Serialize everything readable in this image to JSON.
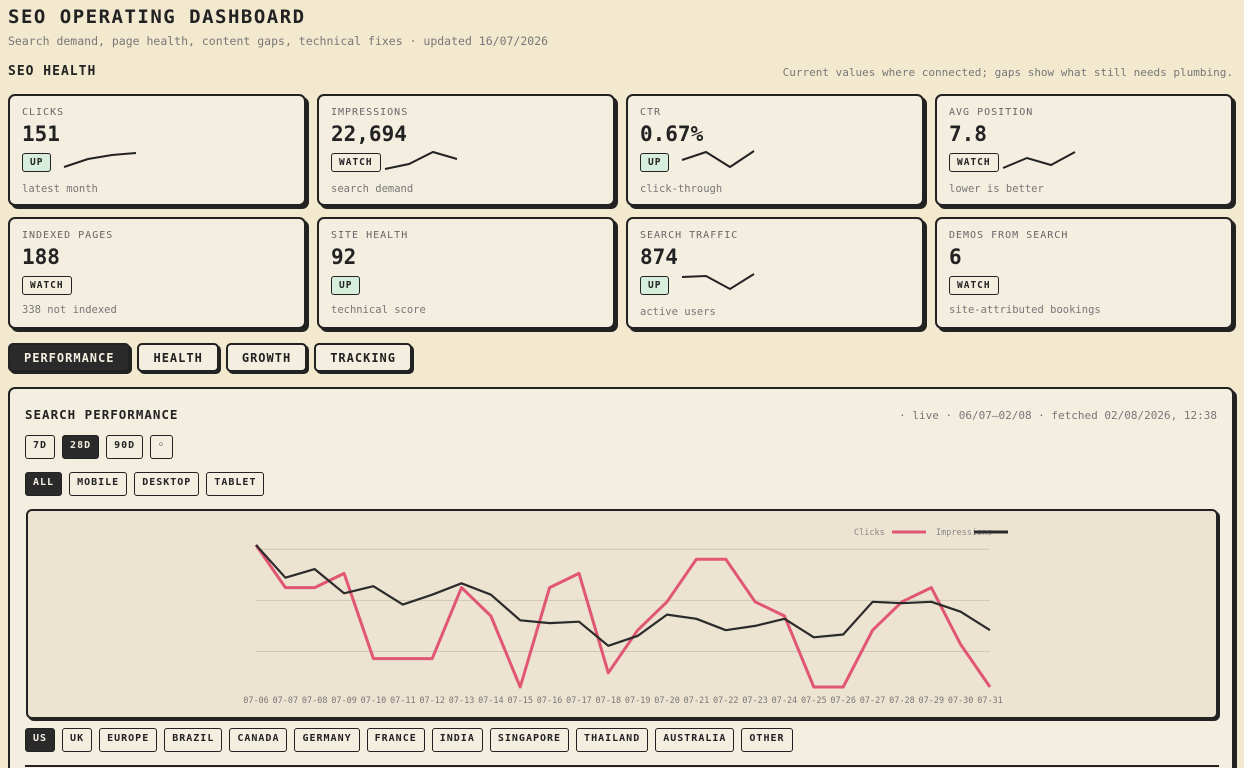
{
  "header": {
    "title": "SEO OPERATING DASHBOARD",
    "subtitle": "Search demand, page health, content gaps, technical fixes · updated 16/07/2026"
  },
  "health": {
    "title": "SEO HEALTH",
    "note": "Current values where connected; gaps show what still needs plumbing.",
    "cards": [
      {
        "label": "CLICKS",
        "value": "151",
        "badge": "UP",
        "badge_type": "up",
        "caption": "latest month",
        "trend": [
          0.15,
          0.55,
          0.75,
          0.85
        ]
      },
      {
        "label": "IMPRESSIONS",
        "value": "22,694",
        "badge": "WATCH",
        "badge_type": "watch",
        "caption": "search demand",
        "trend": [
          0.05,
          0.3,
          0.9,
          0.55
        ]
      },
      {
        "label": "CTR",
        "value": "0.67%",
        "badge": "UP",
        "badge_type": "up",
        "caption": "click-through",
        "trend": [
          0.5,
          0.9,
          0.15,
          0.95
        ]
      },
      {
        "label": "AVG POSITION",
        "value": "7.8",
        "badge": "WATCH",
        "badge_type": "watch",
        "caption": "lower is better",
        "trend": [
          0.1,
          0.6,
          0.25,
          0.9
        ]
      },
      {
        "label": "INDEXED PAGES",
        "value": "188",
        "badge": "WATCH",
        "badge_type": "watch",
        "caption": "338 not indexed",
        "trend": []
      },
      {
        "label": "SITE HEALTH",
        "value": "92",
        "badge": "UP",
        "badge_type": "up",
        "caption": "technical score",
        "trend": []
      },
      {
        "label": "SEARCH TRAFFIC",
        "value": "874",
        "badge": "UP",
        "badge_type": "up",
        "caption": "active users",
        "trend": [
          0.8,
          0.85,
          0.2,
          0.95
        ]
      },
      {
        "label": "DEMOS FROM SEARCH",
        "value": "6",
        "badge": "WATCH",
        "badge_type": "watch",
        "caption": "site-attributed bookings",
        "trend": []
      }
    ]
  },
  "tabs": [
    {
      "label": "PERFORMANCE",
      "active": true
    },
    {
      "label": "HEALTH",
      "active": false
    },
    {
      "label": "GROWTH",
      "active": false
    },
    {
      "label": "TRACKING",
      "active": false
    }
  ],
  "performance": {
    "title": "SEARCH PERFORMANCE",
    "meta": "· live · 06/07–02/08 · fetched 02/08/2026, 12:38",
    "ranges": [
      {
        "label": "7D",
        "active": false
      },
      {
        "label": "28D",
        "active": true
      },
      {
        "label": "90D",
        "active": false
      },
      {
        "label": "◦",
        "active": false
      }
    ],
    "devices": [
      {
        "label": "ALL",
        "active": true
      },
      {
        "label": "MOBILE",
        "active": false
      },
      {
        "label": "DESKTOP",
        "active": false
      },
      {
        "label": "TABLET",
        "active": false
      }
    ],
    "countries": [
      {
        "label": "US",
        "active": true
      },
      {
        "label": "UK",
        "active": false
      },
      {
        "label": "EUROPE",
        "active": false
      },
      {
        "label": "BRAZIL",
        "active": false
      },
      {
        "label": "CANADA",
        "active": false
      },
      {
        "label": "GERMANY",
        "active": false
      },
      {
        "label": "FRANCE",
        "active": false
      },
      {
        "label": "INDIA",
        "active": false
      },
      {
        "label": "SINGAPORE",
        "active": false
      },
      {
        "label": "THAILAND",
        "active": false
      },
      {
        "label": "AUSTRALIA",
        "active": false
      },
      {
        "label": "OTHER",
        "active": false
      }
    ]
  },
  "chart_data": {
    "type": "line",
    "title": "",
    "xlabel": "",
    "ylabel": "",
    "ylim": [
      0,
      10
    ],
    "grid": true,
    "legend": "top-right",
    "categories": [
      "07-06",
      "07-07",
      "07-08",
      "07-09",
      "07-10",
      "07-11",
      "07-12",
      "07-13",
      "07-14",
      "07-15",
      "07-16",
      "07-17",
      "07-18",
      "07-19",
      "07-20",
      "07-21",
      "07-22",
      "07-23",
      "07-24",
      "07-25",
      "07-26",
      "07-27",
      "07-28",
      "07-29",
      "07-30",
      "07-31"
    ],
    "series": [
      {
        "name": "Clicks",
        "color": "#e05673",
        "values": [
          10,
          7,
          7,
          8,
          2,
          2,
          2,
          7,
          5,
          0,
          7,
          8,
          1,
          4,
          6,
          9,
          9,
          6,
          5,
          0,
          0,
          4,
          6,
          7,
          3,
          0
        ]
      },
      {
        "name": "Impressions",
        "color": "#2b2b2b",
        "values": [
          10,
          7.7,
          8.3,
          6.6,
          7.1,
          5.8,
          6.5,
          7.3,
          6.5,
          4.7,
          4.5,
          4.6,
          2.9,
          3.6,
          5.1,
          4.8,
          4.0,
          4.3,
          4.8,
          3.5,
          3.7,
          6.0,
          5.9,
          6.0,
          5.3,
          4.0
        ]
      }
    ]
  }
}
